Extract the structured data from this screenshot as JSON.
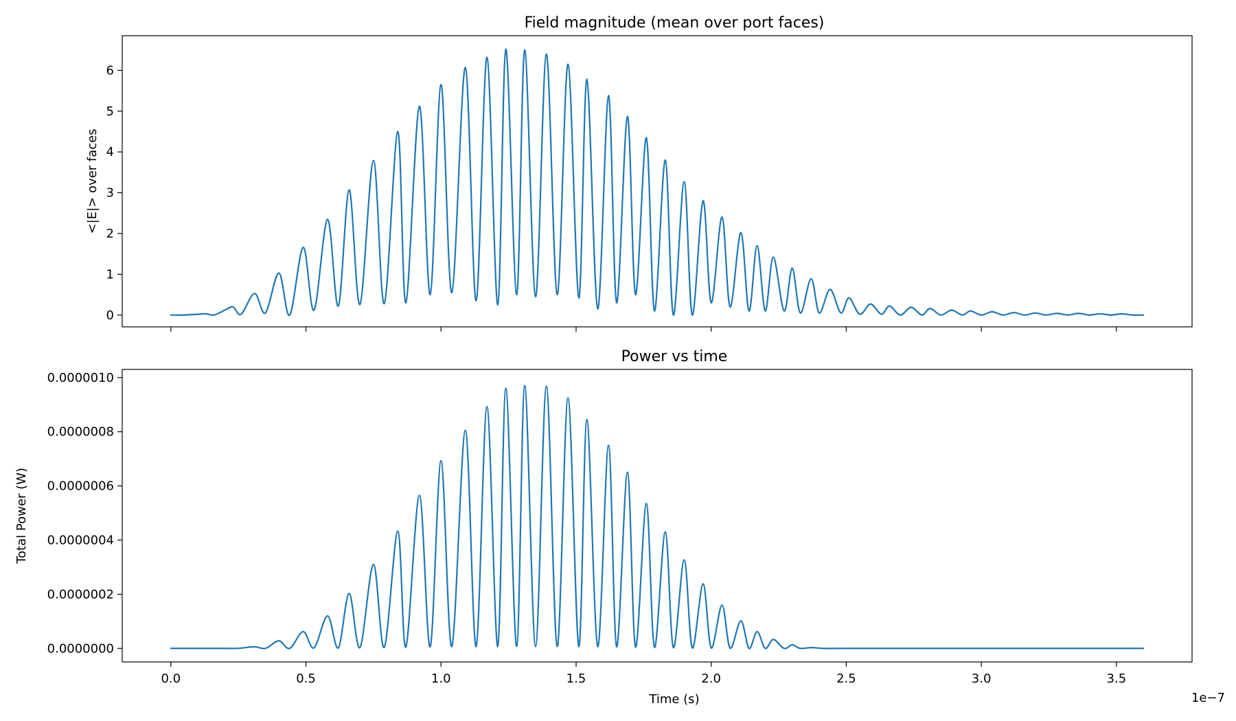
{
  "chart_data": [
    {
      "type": "line",
      "title": "Field magnitude (mean over port faces)",
      "xlabel": "",
      "ylabel": "<|E|> over faces",
      "xlim": [
        -1.8e-08,
        3.78e-07
      ],
      "ylim": [
        -0.29,
        6.85
      ],
      "xticks": [
        0.0,
        5e-08,
        1e-07,
        1.5e-07,
        2e-07,
        2.5e-07,
        3e-07,
        3.5e-07
      ],
      "xtick_labels": [],
      "yticks": [
        0,
        1,
        2,
        3,
        4,
        5,
        6
      ],
      "ytick_labels": [
        "0",
        "1",
        "2",
        "3",
        "4",
        "5",
        "6"
      ],
      "grid": false,
      "color": "#1f77b4",
      "series": [
        {
          "x": [
            0.0,
            5e-09,
            1e-08,
            1.3e-08,
            1.6e-08,
            2e-08,
            2.3e-08,
            2.6e-08,
            3.1e-08,
            3.5e-08,
            4e-08,
            4.4e-08,
            4.9e-08,
            5.3e-08,
            5.8e-08,
            6.2e-08,
            6.6e-08,
            7e-08,
            7.5e-08,
            7.9e-08,
            8.4e-08,
            8.7e-08,
            9.2e-08,
            9.6e-08,
            1e-07,
            1.04e-07,
            1.09e-07,
            1.13e-07,
            1.17e-07,
            1.21e-07,
            1.24e-07,
            1.28e-07,
            1.31e-07,
            1.35e-07,
            1.39e-07,
            1.43e-07,
            1.47e-07,
            1.51e-07,
            1.54e-07,
            1.58e-07,
            1.62e-07,
            1.65e-07,
            1.69e-07,
            1.72e-07,
            1.76e-07,
            1.79e-07,
            1.83e-07,
            1.86e-07,
            1.9e-07,
            1.93e-07,
            1.97e-07,
            2e-07,
            2.04e-07,
            2.07e-07,
            2.11e-07,
            2.14e-07,
            2.17e-07,
            2.2e-07,
            2.23e-07,
            2.27e-07,
            2.3e-07,
            2.33e-07,
            2.37e-07,
            2.4e-07,
            2.44e-07,
            2.48e-07,
            2.51e-07,
            2.55e-07,
            2.59e-07,
            2.63e-07,
            2.66e-07,
            2.7e-07,
            2.74e-07,
            2.78e-07,
            2.81e-07,
            2.85e-07,
            2.89e-07,
            2.93e-07,
            2.96e-07,
            3e-07,
            3.04e-07,
            3.08e-07,
            3.12e-07,
            3.16e-07,
            3.2e-07,
            3.24e-07,
            3.28e-07,
            3.32e-07,
            3.36e-07,
            3.4e-07,
            3.44e-07,
            3.48e-07,
            3.52e-07,
            3.56e-07,
            3.6e-07
          ],
          "y": [
            0.0,
            0.0,
            0.02,
            0.03,
            0.0,
            0.12,
            0.2,
            0.02,
            0.53,
            0.05,
            1.03,
            0.0,
            1.66,
            0.12,
            2.35,
            0.22,
            3.07,
            0.26,
            3.79,
            0.28,
            4.5,
            0.3,
            5.12,
            0.5,
            5.65,
            0.55,
            6.07,
            0.35,
            6.32,
            0.25,
            6.52,
            0.5,
            6.5,
            0.45,
            6.4,
            0.5,
            6.15,
            0.42,
            5.78,
            0.15,
            5.38,
            0.3,
            4.87,
            0.5,
            4.35,
            0.1,
            3.8,
            0.0,
            3.27,
            0.0,
            2.8,
            0.3,
            2.4,
            0.2,
            2.02,
            0.1,
            1.7,
            0.1,
            1.42,
            0.1,
            1.15,
            0.05,
            0.89,
            0.05,
            0.63,
            0.05,
            0.42,
            0.02,
            0.27,
            0.02,
            0.22,
            0.0,
            0.19,
            0.0,
            0.16,
            0.0,
            0.12,
            0.0,
            0.1,
            0.0,
            0.08,
            0.0,
            0.06,
            0.0,
            0.05,
            0.0,
            0.04,
            0.0,
            0.04,
            0.0,
            0.03,
            0.0,
            0.03,
            0.0,
            0.0
          ]
        }
      ]
    },
    {
      "type": "line",
      "title": "Power vs time",
      "xlabel": "Time (s)",
      "ylabel": "Total Power (W)",
      "x_offset_label": "1e−7",
      "xlim": [
        -1.8e-08,
        3.78e-07
      ],
      "ylim": [
        -5e-08,
        1.03e-06
      ],
      "xticks": [
        0.0,
        5e-08,
        1e-07,
        1.5e-07,
        2e-07,
        2.5e-07,
        3e-07,
        3.5e-07
      ],
      "xtick_labels": [
        "0.0",
        "0.5",
        "1.0",
        "1.5",
        "2.0",
        "2.5",
        "3.0",
        "3.5"
      ],
      "yticks": [
        0.0,
        2e-07,
        4e-07,
        6e-07,
        8e-07,
        1e-06
      ],
      "ytick_labels": [
        "0.0000000",
        "0.0000002",
        "0.0000004",
        "0.0000006",
        "0.0000008",
        "0.0000010"
      ],
      "grid": false,
      "color": "#1f77b4",
      "series": [
        {
          "x": [
            0.0,
            1e-08,
            2e-08,
            2.5e-08,
            3.1e-08,
            3.5e-08,
            4e-08,
            4.4e-08,
            4.9e-08,
            5.3e-08,
            5.8e-08,
            6.2e-08,
            6.6e-08,
            7e-08,
            7.5e-08,
            7.9e-08,
            8.4e-08,
            8.7e-08,
            9.2e-08,
            9.6e-08,
            1e-07,
            1.04e-07,
            1.09e-07,
            1.13e-07,
            1.17e-07,
            1.21e-07,
            1.24e-07,
            1.28e-07,
            1.31e-07,
            1.35e-07,
            1.39e-07,
            1.43e-07,
            1.47e-07,
            1.51e-07,
            1.54e-07,
            1.58e-07,
            1.62e-07,
            1.65e-07,
            1.69e-07,
            1.72e-07,
            1.76e-07,
            1.79e-07,
            1.83e-07,
            1.86e-07,
            1.9e-07,
            1.93e-07,
            1.97e-07,
            2e-07,
            2.04e-07,
            2.07e-07,
            2.11e-07,
            2.14e-07,
            2.17e-07,
            2.2e-07,
            2.23e-07,
            2.27e-07,
            2.3e-07,
            2.33e-07,
            2.37e-07,
            2.42e-07,
            2.5e-07,
            3e-07,
            3.6e-07
          ],
          "y": [
            0.0,
            0.0,
            0.0,
            2e-10,
            6e-09,
            0.0,
            2.8e-08,
            0.0,
            6.2e-08,
            2e-09,
            1.2e-07,
            2e-09,
            2.03e-07,
            3e-09,
            3.1e-07,
            4e-09,
            4.33e-07,
            5e-09,
            5.65e-07,
            6e-09,
            6.93e-07,
            7e-09,
            8.05e-07,
            7e-09,
            8.93e-07,
            7e-09,
            9.6e-07,
            7e-09,
            9.7e-07,
            7e-09,
            9.68e-07,
            7e-09,
            9.25e-07,
            7e-09,
            8.45e-07,
            7e-09,
            7.5e-07,
            6e-09,
            6.5e-07,
            5e-09,
            5.35e-07,
            4e-09,
            4.3e-07,
            3e-09,
            3.27e-07,
            2e-09,
            2.38e-07,
            2e-09,
            1.6e-07,
            1e-09,
            1.02e-07,
            0.0,
            6.2e-08,
            0.0,
            3.3e-08,
            0.0,
            1.3e-08,
            0.0,
            3e-09,
            0.0,
            0.0,
            0.0,
            0.0
          ]
        }
      ]
    }
  ]
}
